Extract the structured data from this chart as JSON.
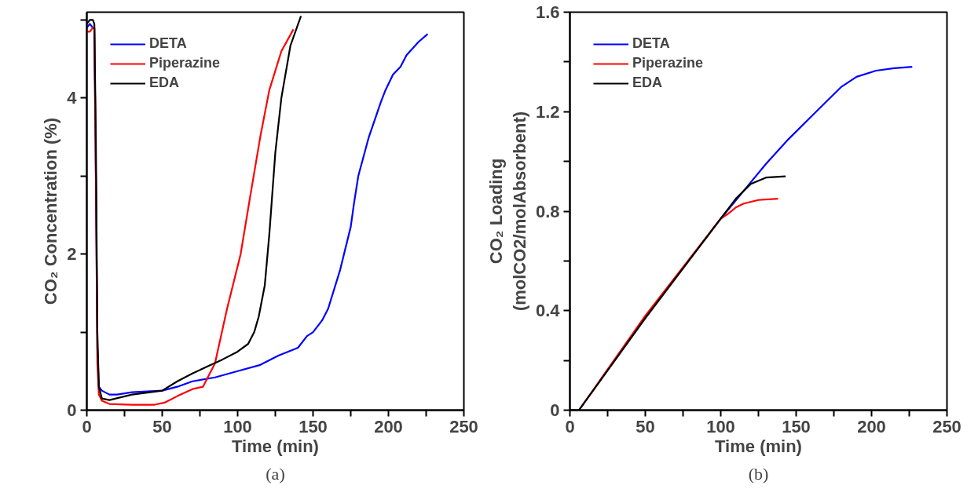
{
  "chart_data": [
    {
      "type": "line",
      "xlabel": "Time (min)",
      "ylabel": "CO₂ Concentration (%)",
      "annotations": [
        "(a)"
      ],
      "xlim": [
        0,
        250
      ],
      "ylim": [
        0,
        5.1
      ],
      "xticks": [
        0,
        {
          "value": 25,
          "label": null
        },
        50,
        {
          "value": 75,
          "label": null
        },
        100,
        {
          "value": 125,
          "label": null
        },
        150,
        {
          "value": 175,
          "label": null
        },
        200,
        {
          "value": 225,
          "label": null
        },
        250
      ],
      "yticks": [
        0,
        {
          "value": 1,
          "label": null
        },
        2,
        {
          "value": 3,
          "label": null
        },
        4,
        {
          "value": 5,
          "label": null
        }
      ],
      "grid": false,
      "legend": "top left",
      "line_style": "solid",
      "marker": "none",
      "series": [
        {
          "name": "DETA",
          "color": "#0000ff",
          "x": [
            0,
            2,
            4,
            5,
            6,
            7,
            8,
            10,
            15,
            20,
            30,
            40,
            50,
            60,
            70,
            85,
            100,
            115,
            127,
            140,
            146,
            150,
            156,
            160,
            168,
            175,
            177,
            180,
            187,
            195,
            198,
            203,
            208,
            212,
            220,
            226
          ],
          "values": [
            4.9,
            4.95,
            4.9,
            4.9,
            3.0,
            0.8,
            0.3,
            0.25,
            0.2,
            0.2,
            0.23,
            0.24,
            0.25,
            0.3,
            0.37,
            0.42,
            0.5,
            0.58,
            0.7,
            0.8,
            0.95,
            1.0,
            1.15,
            1.3,
            1.8,
            2.35,
            2.63,
            3.0,
            3.5,
            3.95,
            4.1,
            4.3,
            4.4,
            4.55,
            4.72,
            4.82
          ]
        },
        {
          "name": "Piperazine",
          "color": "#ff0000",
          "x": [
            0,
            2,
            4,
            5,
            6,
            7,
            8,
            10,
            15,
            30,
            45,
            52,
            60,
            70,
            77,
            85,
            93,
            102,
            108,
            115,
            121,
            129,
            137
          ],
          "values": [
            4.85,
            4.85,
            4.9,
            4.9,
            3.0,
            0.6,
            0.2,
            0.12,
            0.08,
            0.07,
            0.07,
            0.1,
            0.18,
            0.27,
            0.3,
            0.6,
            1.3,
            2.0,
            2.7,
            3.5,
            4.1,
            4.6,
            4.88
          ]
        },
        {
          "name": "EDA",
          "color": "#000000",
          "x": [
            0,
            2,
            4,
            5,
            6,
            7,
            8,
            10,
            15,
            30,
            50,
            60,
            70,
            80,
            90,
            100,
            107,
            111,
            114,
            118,
            121,
            125,
            129,
            135,
            142
          ],
          "values": [
            4.95,
            5.0,
            5.0,
            4.95,
            3.5,
            1.0,
            0.3,
            0.15,
            0.13,
            0.2,
            0.25,
            0.37,
            0.47,
            0.56,
            0.65,
            0.75,
            0.85,
            1.0,
            1.2,
            1.6,
            2.25,
            3.3,
            4.0,
            4.67,
            5.05
          ]
        }
      ]
    },
    {
      "type": "line",
      "xlabel": "Time (min)",
      "ylabel": "CO₂ Loading\n(molCO2/molAbsorbent)",
      "annotations": [
        "(b)"
      ],
      "xlim": [
        0,
        250
      ],
      "ylim": [
        0,
        1.6
      ],
      "xticks": [
        0,
        {
          "value": 25,
          "label": null
        },
        50,
        {
          "value": 75,
          "label": null
        },
        100,
        {
          "value": 125,
          "label": null
        },
        150,
        {
          "value": 175,
          "label": null
        },
        200,
        {
          "value": 225,
          "label": null
        },
        250
      ],
      "yticks": [
        0,
        {
          "value": 0.2,
          "label": null
        },
        0.4,
        {
          "value": 0.6,
          "label": null
        },
        0.8,
        {
          "value": 1.0,
          "label": null
        },
        1.2,
        {
          "value": 1.4,
          "label": null
        },
        1.6
      ],
      "grid": false,
      "legend": "top left",
      "line_style": "solid",
      "marker": "none",
      "series": [
        {
          "name": "DETA",
          "color": "#0000ff",
          "x": [
            100,
            115,
            130,
            145,
            160,
            170,
            180,
            190,
            203,
            215,
            227
          ],
          "values": [
            0.77,
            0.88,
            0.99,
            1.09,
            1.18,
            1.24,
            1.3,
            1.34,
            1.365,
            1.375,
            1.38
          ]
        },
        {
          "name": "Piperazine",
          "color": "#ff0000",
          "x": [
            6,
            50,
            100,
            105,
            110,
            115,
            125,
            138
          ],
          "values": [
            0,
            0.38,
            0.77,
            0.79,
            0.815,
            0.83,
            0.845,
            0.85
          ]
        },
        {
          "name": "EDA",
          "color": "#000000",
          "x": [
            0,
            5,
            6,
            50,
            100,
            105,
            110,
            115,
            120,
            130,
            143
          ],
          "values": [
            0,
            0,
            0,
            0.37,
            0.77,
            0.81,
            0.85,
            0.88,
            0.91,
            0.935,
            0.94
          ]
        }
      ]
    }
  ]
}
